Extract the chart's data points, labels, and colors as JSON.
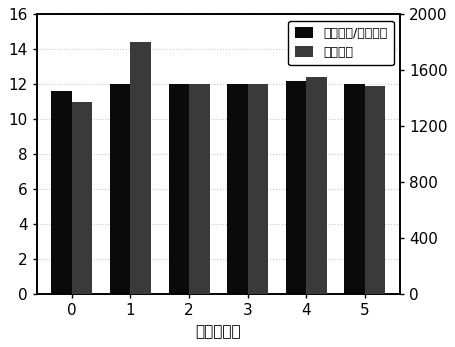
{
  "months": [
    0,
    1,
    2,
    3,
    4,
    5
  ],
  "left_values": [
    11.6,
    12.0,
    12.0,
    12.0,
    12.2,
    12.0
  ],
  "second_bar_raw": [
    1375,
    1800,
    1500,
    1500,
    1550,
    1487
  ],
  "left_ylim": [
    0,
    16
  ],
  "right_ylim": [
    0,
    2000
  ],
  "left_yticks": [
    0,
    2,
    4,
    6,
    8,
    10,
    12,
    14,
    16
  ],
  "right_yticks": [
    0,
    400,
    800,
    1200,
    1600,
    2000
  ],
  "xlabel": "时间（月）",
  "legend_label1": "初始电阵/实时电阵",
  "legend_label2": "恢复时间",
  "bar_color1": "#0a0a0a",
  "bar_color2": "#3a3a3a",
  "background_color": "#ffffff",
  "plot_bg_color": "#f5f5f5",
  "bar_width": 0.35,
  "grid_color": "#bbbbbb",
  "grid_style": ":",
  "tick_fontsize": 11,
  "label_fontsize": 11,
  "legend_fontsize": 9
}
